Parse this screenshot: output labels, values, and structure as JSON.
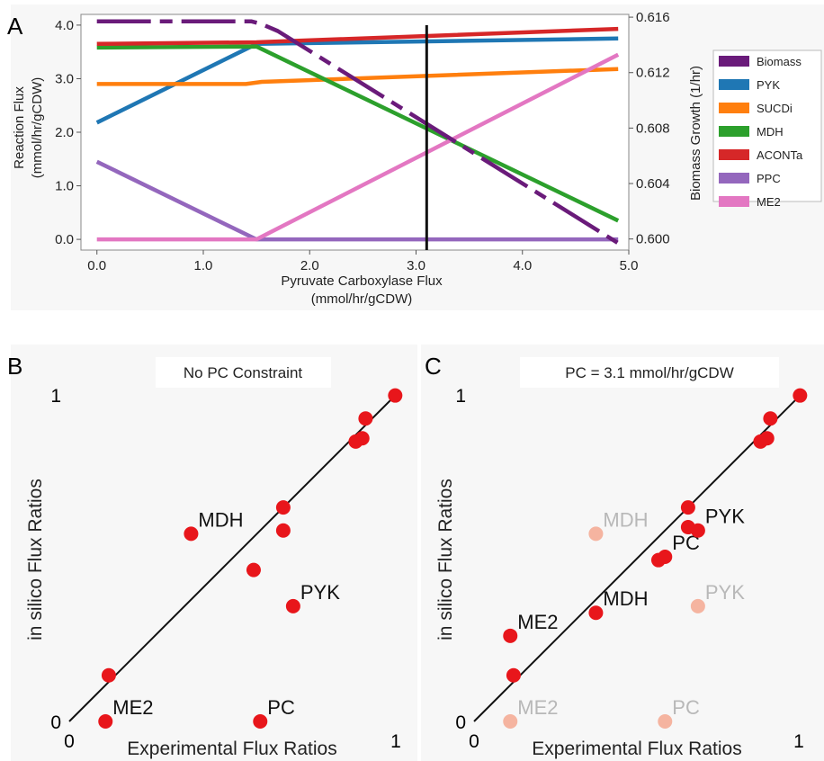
{
  "figure": {
    "panel_labels": [
      "A",
      "B",
      "C"
    ]
  },
  "chart_data": [
    {
      "panel": "A",
      "type": "line",
      "title": "",
      "xlabel": "Pyruvate Carboxylase Flux (mmol/hr/gCDW)",
      "xlabel_lines": [
        "Pyruvate Carboxylase Flux",
        "(mmol/hr/gCDW)"
      ],
      "ylabel": "Reaction Flux (mmol/hr/gCDW)",
      "ylabel_lines": [
        "Reaction Flux",
        "(mmol/hr/gCDW)"
      ],
      "y2label": "Biomass Growth (1/hr)",
      "xlim": [
        -0.15,
        5.0
      ],
      "ylim": [
        -0.2,
        4.2
      ],
      "y2lim": [
        0.5992,
        0.6162
      ],
      "xticks": [
        0,
        1,
        2,
        3,
        4,
        5
      ],
      "xtick_labels": [
        "0.0",
        "1.0",
        "2.0",
        "3.0",
        "4.0",
        "5.0"
      ],
      "yticks": [
        0,
        1,
        2,
        3,
        4
      ],
      "ytick_labels": [
        "0.0",
        "1.0",
        "2.0",
        "3.0",
        "4.0"
      ],
      "y2ticks": [
        0.6,
        0.604,
        0.608,
        0.612,
        0.616
      ],
      "y2tick_labels": [
        "0.600",
        "0.604",
        "0.608",
        "0.612",
        "0.616"
      ],
      "legend_position": "right",
      "vline_x": 3.1,
      "series": [
        {
          "name": "Biomass",
          "axis": "right",
          "dashed": true,
          "color": "#6a1b7a",
          "x": [
            0.0,
            1.45,
            1.55,
            1.7,
            4.9
          ],
          "y": [
            0.6157,
            0.6157,
            0.6155,
            0.615,
            0.5997
          ]
        },
        {
          "name": "PYK",
          "axis": "left",
          "color": "#1f77b4",
          "x": [
            0.0,
            1.5,
            4.9
          ],
          "y": [
            2.18,
            3.65,
            3.75
          ]
        },
        {
          "name": "SUCDi",
          "axis": "left",
          "color": "#ff7f0e",
          "x": [
            0.0,
            1.4,
            1.55,
            4.9
          ],
          "y": [
            2.9,
            2.9,
            2.94,
            3.18
          ]
        },
        {
          "name": "MDH",
          "axis": "left",
          "color": "#2ca02c",
          "x": [
            0.0,
            1.5,
            4.9
          ],
          "y": [
            3.58,
            3.6,
            0.35
          ]
        },
        {
          "name": "ACONTa",
          "axis": "left",
          "color": "#d62728",
          "x": [
            0.0,
            1.5,
            4.9
          ],
          "y": [
            3.65,
            3.68,
            3.93
          ]
        },
        {
          "name": "PPC",
          "axis": "left",
          "color": "#9467bd",
          "x": [
            0.0,
            1.5,
            4.9
          ],
          "y": [
            1.45,
            0.0,
            0.0
          ]
        },
        {
          "name": "ME2",
          "axis": "left",
          "color": "#e377c2",
          "x": [
            0.0,
            1.5,
            4.9
          ],
          "y": [
            0.0,
            0.0,
            3.45
          ]
        }
      ]
    },
    {
      "panel": "B",
      "type": "scatter",
      "title": "No PC Constraint",
      "xlabel": "Experimental Flux Ratios",
      "ylabel": "in silico Flux Ratios",
      "xlim": [
        0,
        1
      ],
      "ylim": [
        0,
        1
      ],
      "xtick_labels": [
        "0",
        "1"
      ],
      "ytick_labels": [
        "0",
        "1"
      ],
      "points": [
        {
          "x": 0.11,
          "y": 0.0,
          "label": "ME2",
          "muted": false
        },
        {
          "x": 0.12,
          "y": 0.14,
          "label": "",
          "muted": false
        },
        {
          "x": 0.58,
          "y": 0.0,
          "label": "PC",
          "muted": false
        },
        {
          "x": 0.37,
          "y": 0.57,
          "label": "MDH",
          "muted": false
        },
        {
          "x": 0.56,
          "y": 0.46,
          "label": "",
          "muted": false
        },
        {
          "x": 0.68,
          "y": 0.35,
          "label": "PYK",
          "muted": false
        },
        {
          "x": 0.65,
          "y": 0.65,
          "label": "",
          "muted": false
        },
        {
          "x": 0.65,
          "y": 0.58,
          "label": "",
          "muted": false
        },
        {
          "x": 0.87,
          "y": 0.85,
          "label": "",
          "muted": false
        },
        {
          "x": 0.89,
          "y": 0.86,
          "label": "",
          "muted": false
        },
        {
          "x": 0.9,
          "y": 0.92,
          "label": "",
          "muted": false
        },
        {
          "x": 0.99,
          "y": 0.99,
          "label": "",
          "muted": false
        }
      ]
    },
    {
      "panel": "C",
      "type": "scatter",
      "title": "PC = 3.1 mmol/hr/gCDW",
      "xlabel": "Experimental Flux Ratios",
      "ylabel": "in silico Flux Ratios",
      "xlim": [
        0,
        1
      ],
      "ylim": [
        0,
        1
      ],
      "xtick_labels": [
        "0",
        "1"
      ],
      "ytick_labels": [
        "0",
        "1"
      ],
      "points": [
        {
          "x": 0.11,
          "y": 0.0,
          "label": "ME2",
          "muted": true
        },
        {
          "x": 0.58,
          "y": 0.0,
          "label": "PC",
          "muted": true
        },
        {
          "x": 0.37,
          "y": 0.57,
          "label": "MDH",
          "muted": true
        },
        {
          "x": 0.68,
          "y": 0.35,
          "label": "PYK",
          "muted": true
        },
        {
          "x": 0.11,
          "y": 0.26,
          "label": "ME2",
          "muted": false
        },
        {
          "x": 0.12,
          "y": 0.14,
          "label": "",
          "muted": false
        },
        {
          "x": 0.37,
          "y": 0.33,
          "label": "MDH",
          "muted": false
        },
        {
          "x": 0.56,
          "y": 0.49,
          "label": "",
          "muted": false
        },
        {
          "x": 0.58,
          "y": 0.5,
          "label": "PC",
          "muted": false
        },
        {
          "x": 0.65,
          "y": 0.65,
          "label": "",
          "muted": false
        },
        {
          "x": 0.65,
          "y": 0.59,
          "label": "",
          "muted": false
        },
        {
          "x": 0.68,
          "y": 0.58,
          "label": "PYK",
          "muted": false
        },
        {
          "x": 0.87,
          "y": 0.85,
          "label": "",
          "muted": false
        },
        {
          "x": 0.89,
          "y": 0.86,
          "label": "",
          "muted": false
        },
        {
          "x": 0.9,
          "y": 0.92,
          "label": "",
          "muted": false
        },
        {
          "x": 0.99,
          "y": 0.99,
          "label": "",
          "muted": false
        }
      ]
    }
  ]
}
